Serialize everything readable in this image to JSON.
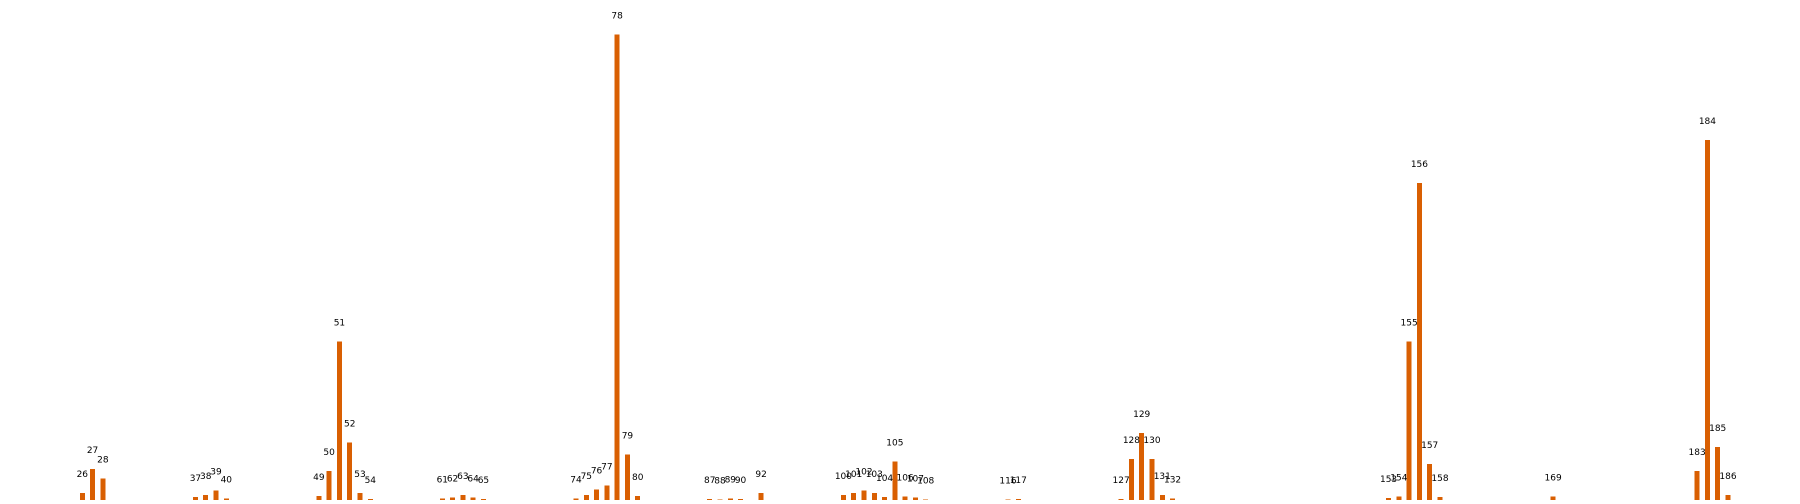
{
  "chart_data": {
    "type": "bar",
    "x": [
      26,
      27,
      28,
      37,
      38,
      39,
      40,
      49,
      50,
      51,
      52,
      53,
      54,
      61,
      62,
      63,
      64,
      65,
      74,
      75,
      76,
      77,
      78,
      79,
      80,
      87,
      88,
      89,
      90,
      92,
      100,
      101,
      102,
      103,
      104,
      105,
      106,
      107,
      108,
      116,
      117,
      127,
      128,
      129,
      130,
      131,
      132,
      153,
      154,
      155,
      156,
      157,
      158,
      169,
      183,
      184,
      185,
      186
    ],
    "values": [
      1.5,
      6.5,
      4.5,
      0.6,
      1.0,
      2.0,
      0.3,
      0.8,
      6.0,
      33.0,
      12.0,
      1.5,
      0.2,
      0.3,
      0.5,
      1.0,
      0.5,
      0.2,
      0.3,
      1.0,
      2.2,
      3.0,
      97.0,
      9.5,
      0.8,
      0.2,
      0.1,
      0.3,
      0.2,
      1.5,
      1.0,
      1.5,
      2.0,
      1.5,
      0.6,
      8.0,
      0.7,
      0.5,
      0.1,
      0.1,
      0.2,
      0.2,
      8.5,
      14.0,
      8.5,
      1.0,
      0.3,
      0.4,
      0.7,
      33.0,
      66.0,
      7.5,
      0.6,
      0.7,
      6.0,
      75.0,
      11.0,
      1.0
    ],
    "labels": [
      "26",
      "27",
      "28",
      "37",
      "38",
      "39",
      "40",
      "49",
      "50",
      "51",
      "52",
      "53",
      "54",
      "61",
      "62",
      "63",
      "64",
      "65",
      "74",
      "75",
      "76",
      "77",
      "78",
      "79",
      "80",
      "87",
      "88",
      "89",
      "90",
      "92",
      "100",
      "101",
      "102",
      "103",
      "104",
      "105",
      "106",
      "107",
      "108",
      "116",
      "117",
      "127",
      "128",
      "129",
      "130",
      "131",
      "132",
      "153",
      "154",
      "155",
      "156",
      "157",
      "158",
      "169",
      "183",
      "184",
      "185",
      "186"
    ],
    "xlim": [
      18,
      193
    ],
    "ylim": [
      0,
      100
    ],
    "bar_color": "#d95f02",
    "grid": false,
    "axes_visible": false
  }
}
